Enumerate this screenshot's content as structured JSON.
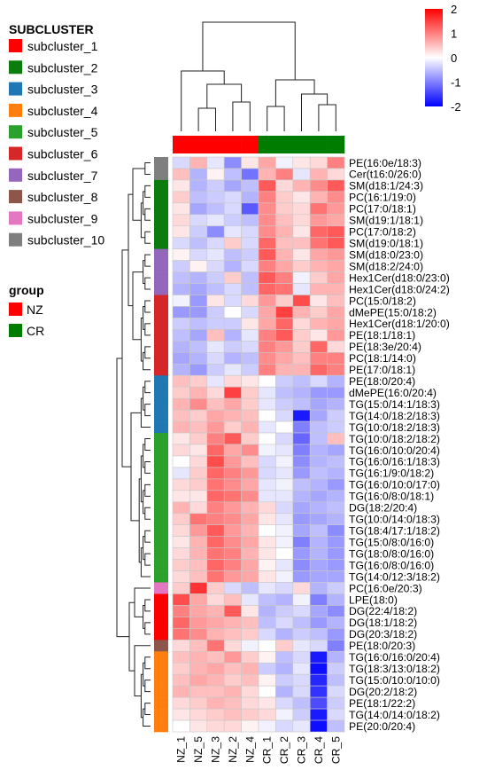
{
  "chart_data": {
    "type": "heatmap",
    "columns": [
      "NZ_1",
      "NZ_5",
      "NZ_3",
      "NZ_2",
      "NZ_4",
      "CR_1",
      "CR_2",
      "CR_3",
      "CR_4",
      "CR_5"
    ],
    "rows": [
      "PE(16:0e/18:3)",
      "Cer(t16:0/26:0)",
      "SM(d18:1/24:3)",
      "PC(16:1/19:0)",
      "PC(17:0/18:1)",
      "SM(d19:1/18:1)",
      "PC(17:0/18:2)",
      "SM(d19:0/18:1)",
      "SM(d18:0/23:0)",
      "SM(d18:2/24:0)",
      "Hex1Cer(d18:0/23:0)",
      "Hex1Cer(d18:0/24:2)",
      "PC(15:0/18:2)",
      "dMePE(15:0/18:2)",
      "Hex1Cer(d18:1/20:0)",
      "PE(18:1/18:1)",
      "PE(18:3e/20:4)",
      "PC(18:1/14:0)",
      "PE(17:0/18:1)",
      "PE(18:0/20:4)",
      "dMePE(16:0/20:4)",
      "TG(15:0/14:1/18:3)",
      "TG(14:0/18:2/18:3)",
      "TG(10:0/18:2/18:3)",
      "TG(10:0/18:2/18:2)",
      "TG(16:0/10:0/20:4)",
      "TG(16:0/16:1/18:3)",
      "TG(16:1/9:0/18:2)",
      "TG(16:0/10:0/17:0)",
      "TG(16:0/8:0/18:1)",
      "DG(18:2/20:4)",
      "TG(10:0/14:0/18:3)",
      "TG(18:4/17:1/18:2)",
      "TG(15:0/8:0/16:0)",
      "TG(18:0/8:0/16:0)",
      "TG(16:0/8:0/16:0)",
      "TG(14:0/12:3/18:2)",
      "PC(16:0e/20:3)",
      "LPE(18:0)",
      "DG(22:4/18:2)",
      "DG(18:1/18:2)",
      "DG(20:3/18:2)",
      "PE(18:0/20:3)",
      "TG(16:0/16:0/20:4)",
      "TG(18:3/13:0/18:2)",
      "TG(15:0/10:0/10:0)",
      "DG(20:2/18:2)",
      "PE(18:1/22:2)",
      "TG(14:0/14:0/18:2)",
      "PE(20:0/20:4)"
    ],
    "row_subcluster": [
      10,
      10,
      2,
      2,
      2,
      2,
      2,
      2,
      7,
      7,
      7,
      7,
      6,
      6,
      6,
      6,
      6,
      6,
      6,
      3,
      3,
      3,
      3,
      3,
      5,
      5,
      5,
      5,
      5,
      5,
      5,
      5,
      5,
      5,
      5,
      5,
      5,
      9,
      1,
      1,
      1,
      1,
      8,
      4,
      4,
      4,
      4,
      4,
      4,
      4
    ],
    "column_group": [
      "NZ",
      "NZ",
      "NZ",
      "NZ",
      "NZ",
      "CR",
      "CR",
      "CR",
      "CR",
      "CR"
    ],
    "values": [
      [
        -0.3,
        0.6,
        -0.2,
        -0.9,
        0.2,
        0.7,
        -0.1,
        0.2,
        0.3,
        1.0
      ],
      [
        0.5,
        -0.6,
        0.1,
        -0.5,
        -1.1,
        0.6,
        1.0,
        -0.2,
        0.6,
        0.3
      ],
      [
        0.2,
        -0.6,
        -0.4,
        -0.7,
        -0.5,
        1.3,
        0.3,
        0.6,
        0.9,
        1.3
      ],
      [
        0.4,
        -0.5,
        -0.4,
        -0.3,
        -0.6,
        1.0,
        0.4,
        0.2,
        0.6,
        0.9
      ],
      [
        0.2,
        -0.7,
        -0.5,
        -0.3,
        -1.3,
        0.9,
        0.4,
        0.3,
        1.1,
        0.8
      ],
      [
        0.3,
        -0.3,
        -0.2,
        -0.4,
        -0.5,
        0.9,
        0.5,
        0.3,
        0.8,
        0.7
      ],
      [
        0.2,
        -0.4,
        -0.9,
        -0.2,
        -0.3,
        0.9,
        0.6,
        0.2,
        1.2,
        1.3
      ],
      [
        -0.3,
        -0.5,
        -0.3,
        0.4,
        -0.3,
        1.2,
        0.5,
        0.5,
        1.1,
        1.3
      ],
      [
        0.1,
        -0.3,
        -0.2,
        -0.5,
        -0.4,
        1.3,
        0.6,
        0.2,
        0.7,
        0.8
      ],
      [
        -0.4,
        0.1,
        -0.3,
        -0.6,
        -0.3,
        1.0,
        0.7,
        0.4,
        0.6,
        0.7
      ],
      [
        -0.5,
        -0.6,
        -0.4,
        0.4,
        -0.5,
        1.3,
        1.0,
        -0.1,
        0.4,
        0.7
      ],
      [
        -0.6,
        -0.7,
        -0.5,
        -0.3,
        -0.5,
        1.2,
        1.1,
        -0.2,
        0.6,
        0.6
      ],
      [
        -0.1,
        -0.8,
        0.2,
        -0.3,
        0.3,
        0.8,
        0.4,
        1.4,
        0.2,
        0.5
      ],
      [
        -0.8,
        -0.8,
        -0.4,
        0.0,
        -0.3,
        0.7,
        1.5,
        0.6,
        0.4,
        0.7
      ],
      [
        -0.4,
        -0.5,
        -0.4,
        -0.4,
        0.2,
        0.7,
        1.2,
        0.3,
        0.6,
        0.7
      ],
      [
        -0.5,
        -0.7,
        0.5,
        -0.6,
        -0.2,
        1.0,
        1.3,
        0.4,
        0.2,
        0.8
      ],
      [
        -0.6,
        -0.5,
        -0.2,
        -0.4,
        -0.3,
        1.0,
        0.8,
        0.4,
        1.2,
        0.3
      ],
      [
        -0.7,
        -0.6,
        -0.3,
        -0.6,
        -0.5,
        0.9,
        0.7,
        0.5,
        1.0,
        1.0
      ],
      [
        -0.6,
        -0.8,
        -0.4,
        -0.2,
        -0.4,
        1.0,
        0.6,
        0.6,
        1.2,
        1.0
      ],
      [
        0.5,
        0.4,
        -0.2,
        0.3,
        0.2,
        0.0,
        -0.4,
        -0.5,
        -0.3,
        -0.6
      ],
      [
        0.4,
        0.6,
        0.3,
        1.5,
        0.4,
        -0.2,
        -0.5,
        -0.6,
        -0.8,
        -0.8
      ],
      [
        0.6,
        0.9,
        0.5,
        0.7,
        0.4,
        -0.2,
        -0.4,
        -0.5,
        -0.7,
        -0.6
      ],
      [
        0.5,
        0.4,
        0.7,
        0.6,
        0.5,
        0.0,
        -0.3,
        -1.8,
        -0.7,
        -0.4
      ],
      [
        0.6,
        0.5,
        0.8,
        0.4,
        0.6,
        -0.2,
        0.0,
        -1.0,
        -0.5,
        -0.4
      ],
      [
        0.2,
        0.4,
        1.0,
        1.3,
        0.4,
        0.0,
        -0.3,
        -1.2,
        -0.5,
        0.5
      ],
      [
        0.3,
        0.2,
        1.2,
        0.7,
        0.9,
        -0.1,
        -0.2,
        -1.0,
        -0.6,
        -0.7
      ],
      [
        0.0,
        0.3,
        1.4,
        0.8,
        0.5,
        -0.3,
        -0.1,
        -0.9,
        -0.6,
        -0.5
      ],
      [
        -0.2,
        0.4,
        1.2,
        1.0,
        0.8,
        -0.3,
        -0.2,
        -0.8,
        -0.5,
        -0.6
      ],
      [
        0.3,
        0.4,
        1.1,
        0.9,
        0.7,
        -0.2,
        -0.1,
        -0.5,
        -0.6,
        -0.8
      ],
      [
        0.2,
        0.2,
        1.2,
        1.1,
        0.9,
        -0.2,
        -0.2,
        -0.6,
        -0.7,
        -0.6
      ],
      [
        0.6,
        0.3,
        1.0,
        0.8,
        0.6,
        0.3,
        -0.3,
        -0.7,
        -0.6,
        -0.5
      ],
      [
        0.4,
        1.1,
        1.0,
        0.9,
        0.7,
        0.2,
        -0.2,
        -0.8,
        -0.7,
        -0.6
      ],
      [
        0.3,
        0.8,
        1.3,
        0.8,
        0.6,
        0.0,
        -0.1,
        -0.7,
        -0.5,
        -0.9
      ],
      [
        0.2,
        0.6,
        1.2,
        0.9,
        0.7,
        0.2,
        -0.1,
        -1.0,
        -0.6,
        -0.8
      ],
      [
        0.3,
        0.6,
        1.1,
        1.0,
        0.6,
        0.2,
        0.0,
        -0.8,
        -0.6,
        -0.8
      ],
      [
        0.4,
        0.5,
        1.2,
        1.0,
        0.7,
        0.1,
        -0.2,
        -0.9,
        -0.7,
        -0.8
      ],
      [
        0.3,
        0.5,
        1.1,
        0.8,
        0.7,
        0.2,
        -0.1,
        -0.8,
        -0.7,
        -0.7
      ],
      [
        0.4,
        1.6,
        0.4,
        -0.3,
        -0.5,
        -0.2,
        -0.3,
        0.3,
        -0.6,
        -0.4
      ],
      [
        1.4,
        0.7,
        0.3,
        0.5,
        -0.2,
        -0.5,
        -0.6,
        -0.1,
        -1.0,
        -0.6
      ],
      [
        1.0,
        0.7,
        0.6,
        1.3,
        0.2,
        -0.6,
        -0.4,
        -0.3,
        -0.7,
        -0.9
      ],
      [
        1.2,
        0.8,
        0.7,
        0.6,
        0.5,
        -0.5,
        -0.3,
        -0.5,
        -0.8,
        -0.6
      ],
      [
        1.1,
        0.9,
        0.6,
        0.5,
        0.4,
        -0.3,
        -0.6,
        -0.4,
        -0.5,
        -0.8
      ],
      [
        0.3,
        0.5,
        1.1,
        0.3,
        -0.1,
        0.0,
        0.4,
        -0.2,
        -0.3,
        -1.0
      ],
      [
        0.5,
        0.6,
        0.5,
        0.8,
        0.4,
        0.1,
        -0.5,
        -0.3,
        -1.8,
        -0.6
      ],
      [
        0.4,
        0.6,
        0.7,
        0.5,
        0.6,
        -0.4,
        -0.6,
        -0.2,
        -1.9,
        -0.4
      ],
      [
        0.5,
        0.7,
        0.6,
        0.4,
        0.5,
        0.1,
        -0.4,
        -0.3,
        -1.7,
        -0.5
      ],
      [
        0.6,
        0.5,
        0.5,
        0.6,
        0.3,
        0.0,
        -0.6,
        -0.3,
        -1.6,
        -0.3
      ],
      [
        0.3,
        0.4,
        0.6,
        0.5,
        0.3,
        0.2,
        -0.3,
        -0.5,
        -1.4,
        -0.4
      ],
      [
        0.2,
        0.3,
        0.4,
        0.5,
        0.4,
        0.3,
        -0.1,
        -0.4,
        -1.8,
        -0.3
      ],
      [
        0.0,
        0.2,
        0.3,
        0.3,
        0.1,
        -0.1,
        -0.3,
        -0.2,
        -1.9,
        -0.5
      ]
    ],
    "color_scale": {
      "min": -2,
      "max": 2,
      "low": "#0000ff",
      "mid": "#ffffff",
      "high": "#ff0000"
    },
    "legend_ticks": [
      "2",
      "1",
      "0",
      "-1",
      "-2"
    ],
    "subcluster_legend": {
      "title": "SUBCLUSTER",
      "items": [
        {
          "label": "subcluster_1",
          "color": "#ff0000"
        },
        {
          "label": "subcluster_2",
          "color": "#0c7d0c"
        },
        {
          "label": "subcluster_3",
          "color": "#1f77b4"
        },
        {
          "label": "subcluster_4",
          "color": "#ff7f0e"
        },
        {
          "label": "subcluster_5",
          "color": "#2ca02c"
        },
        {
          "label": "subcluster_6",
          "color": "#d62728"
        },
        {
          "label": "subcluster_7",
          "color": "#9467bd"
        },
        {
          "label": "subcluster_8",
          "color": "#8c564b"
        },
        {
          "label": "subcluster_9",
          "color": "#e377c2"
        },
        {
          "label": "subcluster_10",
          "color": "#7f7f7f"
        }
      ]
    },
    "group_legend": {
      "title": "group",
      "items": [
        {
          "label": "NZ",
          "color": "#ff0000"
        },
        {
          "label": "CR",
          "color": "#007d00"
        }
      ]
    },
    "column_dendrogram": true,
    "row_dendrogram": true,
    "grid": true
  }
}
